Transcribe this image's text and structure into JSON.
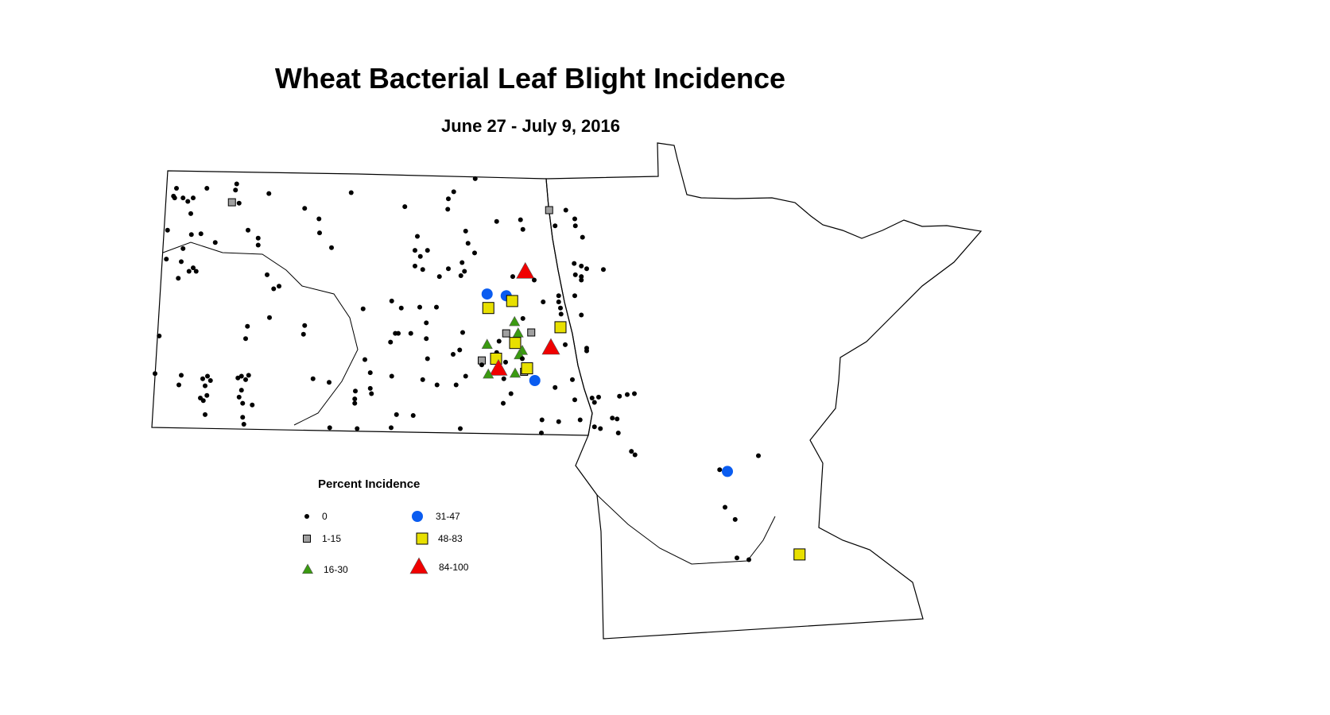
{
  "title": "Wheat Bacterial Leaf Blight Incidence",
  "subtitle": "June 27 - July 9, 2016",
  "legend": {
    "title": "Percent Incidence",
    "classes": [
      {
        "label": "0",
        "symbol": "dot",
        "color": "#000000"
      },
      {
        "label": "1-15",
        "symbol": "small-square",
        "color": "#a0a0a0"
      },
      {
        "label": "16-30",
        "symbol": "small-triangle",
        "color": "#3a9a10"
      },
      {
        "label": "31-47",
        "symbol": "circle",
        "color": "#0a5cf0"
      },
      {
        "label": "48-83",
        "symbol": "square",
        "color": "#e8e000"
      },
      {
        "label": "84-100",
        "symbol": "large-triangle",
        "color": "#f00000"
      }
    ]
  },
  "map_data": {
    "regions": [
      "North Dakota",
      "Minnesota"
    ],
    "point_fields": [
      "lon",
      "lat",
      "class_index"
    ],
    "points": [
      [
        -103.64,
        48.8,
        0
      ],
      [
        -103.13,
        48.8,
        0
      ],
      [
        -103.69,
        48.71,
        0
      ],
      [
        -103.67,
        48.69,
        0
      ],
      [
        -103.53,
        48.69,
        0
      ],
      [
        -103.45,
        48.65,
        0
      ],
      [
        -103.36,
        48.69,
        0
      ],
      [
        -103.4,
        48.51,
        0
      ],
      [
        -103.79,
        48.32,
        0
      ],
      [
        -103.39,
        48.27,
        0
      ],
      [
        -103.23,
        48.28,
        0
      ],
      [
        -102.99,
        48.18,
        0
      ],
      [
        -103.53,
        48.11,
        0
      ],
      [
        -103.81,
        47.99,
        0
      ],
      [
        -103.56,
        47.96,
        0
      ],
      [
        -103.36,
        47.89,
        0
      ],
      [
        -103.31,
        47.85,
        0
      ],
      [
        -103.43,
        47.85,
        0
      ],
      [
        -103.61,
        47.77,
        0
      ],
      [
        -102.63,
        48.85,
        0
      ],
      [
        -102.65,
        48.78,
        0
      ],
      [
        -102.59,
        48.63,
        0
      ],
      [
        -102.71,
        48.64,
        1
      ],
      [
        -102.09,
        48.74,
        0
      ],
      [
        -102.44,
        48.32,
        0
      ],
      [
        -102.27,
        48.23,
        0
      ],
      [
        -102.27,
        48.15,
        0
      ],
      [
        -101.49,
        48.57,
        0
      ],
      [
        -101.25,
        48.45,
        0
      ],
      [
        -101.24,
        48.29,
        0
      ],
      [
        -101.04,
        48.12,
        0
      ],
      [
        -102.12,
        47.81,
        0
      ],
      [
        -101.92,
        47.68,
        0
      ],
      [
        -102.01,
        47.65,
        0
      ],
      [
        -102.08,
        47.32,
        0
      ],
      [
        -101.49,
        47.23,
        0
      ],
      [
        -101.51,
        47.13,
        0
      ],
      [
        -102.45,
        47.22,
        0
      ],
      [
        -102.48,
        47.08,
        0
      ],
      [
        -103.93,
        47.11,
        0
      ],
      [
        -104.0,
        46.68,
        0
      ],
      [
        -103.56,
        46.66,
        0
      ],
      [
        -103.6,
        46.55,
        0
      ],
      [
        -103.2,
        46.62,
        0
      ],
      [
        -103.12,
        46.65,
        0
      ],
      [
        -103.07,
        46.6,
        0
      ],
      [
        -103.16,
        46.54,
        0
      ],
      [
        -103.13,
        46.43,
        0
      ],
      [
        -103.24,
        46.4,
        0
      ],
      [
        -103.19,
        46.37,
        0
      ],
      [
        -102.61,
        46.63,
        0
      ],
      [
        -102.55,
        46.65,
        0
      ],
      [
        -102.43,
        46.66,
        0
      ],
      [
        -102.48,
        46.61,
        0
      ],
      [
        -102.55,
        46.49,
        0
      ],
      [
        -102.59,
        46.41,
        0
      ],
      [
        -102.53,
        46.34,
        0
      ],
      [
        -102.37,
        46.32,
        0
      ],
      [
        -101.35,
        46.62,
        0
      ],
      [
        -101.08,
        46.58,
        0
      ],
      [
        -100.71,
        48.75,
        0
      ],
      [
        -98.63,
        48.91,
        0
      ],
      [
        -98.99,
        48.76,
        0
      ],
      [
        -99.08,
        48.68,
        0
      ],
      [
        -99.09,
        48.56,
        0
      ],
      [
        -99.81,
        48.59,
        0
      ],
      [
        -97.39,
        48.55,
        1
      ],
      [
        -97.11,
        48.55,
        0
      ],
      [
        -98.27,
        48.42,
        0
      ],
      [
        -97.87,
        48.44,
        0
      ],
      [
        -97.83,
        48.33,
        0
      ],
      [
        -97.29,
        48.37,
        0
      ],
      [
        -96.96,
        48.45,
        0
      ],
      [
        -96.95,
        48.37,
        0
      ],
      [
        -96.83,
        48.24,
        0
      ],
      [
        -98.79,
        48.31,
        0
      ],
      [
        -98.75,
        48.17,
        0
      ],
      [
        -98.64,
        48.06,
        0
      ],
      [
        -99.6,
        48.25,
        0
      ],
      [
        -99.64,
        48.09,
        0
      ],
      [
        -99.43,
        48.09,
        0
      ],
      [
        -99.55,
        48.02,
        0
      ],
      [
        -99.64,
        47.91,
        0
      ],
      [
        -99.51,
        47.87,
        0
      ],
      [
        -99.08,
        47.88,
        0
      ],
      [
        -98.85,
        47.95,
        0
      ],
      [
        -98.81,
        47.85,
        0
      ],
      [
        -98.87,
        47.8,
        0
      ],
      [
        -99.23,
        47.79,
        0
      ],
      [
        -97.79,
        47.86,
        5
      ],
      [
        -98.0,
        47.79,
        0
      ],
      [
        -97.64,
        47.75,
        0
      ],
      [
        -98.43,
        47.59,
        3
      ],
      [
        -98.11,
        47.57,
        3
      ],
      [
        -98.01,
        47.51,
        4
      ],
      [
        -98.41,
        47.43,
        4
      ],
      [
        -97.49,
        47.5,
        0
      ],
      [
        -97.23,
        47.57,
        0
      ],
      [
        -97.23,
        47.5,
        0
      ],
      [
        -97.2,
        47.43,
        0
      ],
      [
        -97.19,
        47.36,
        0
      ],
      [
        -97.83,
        47.31,
        0
      ],
      [
        -97.97,
        47.28,
        2
      ],
      [
        -97.2,
        47.21,
        4
      ],
      [
        -96.97,
        47.94,
        0
      ],
      [
        -96.85,
        47.91,
        0
      ],
      [
        -96.76,
        47.88,
        0
      ],
      [
        -96.95,
        47.81,
        0
      ],
      [
        -96.85,
        47.79,
        0
      ],
      [
        -96.85,
        47.75,
        0
      ],
      [
        -96.96,
        47.57,
        0
      ],
      [
        -96.85,
        47.35,
        0
      ],
      [
        -96.48,
        47.87,
        0
      ],
      [
        -97.91,
        47.15,
        2
      ],
      [
        -98.11,
        47.14,
        1
      ],
      [
        -97.69,
        47.15,
        1
      ],
      [
        -98.23,
        47.05,
        0
      ],
      [
        -97.96,
        47.03,
        4
      ],
      [
        -98.43,
        47.02,
        2
      ],
      [
        -97.84,
        46.95,
        2
      ],
      [
        -97.89,
        46.9,
        2
      ],
      [
        -97.36,
        46.99,
        5
      ],
      [
        -97.12,
        47.01,
        0
      ],
      [
        -96.76,
        46.97,
        0
      ],
      [
        -96.76,
        46.94,
        0
      ],
      [
        -98.27,
        46.92,
        0
      ],
      [
        -98.28,
        46.85,
        4
      ],
      [
        -98.12,
        46.81,
        0
      ],
      [
        -98.52,
        46.83,
        1
      ],
      [
        -98.52,
        46.78,
        0
      ],
      [
        -98.24,
        46.75,
        5
      ],
      [
        -98.41,
        46.68,
        2
      ],
      [
        -97.96,
        46.69,
        2
      ],
      [
        -97.81,
        46.7,
        1
      ],
      [
        -97.76,
        46.74,
        4
      ],
      [
        -97.63,
        46.6,
        3
      ],
      [
        -97.84,
        46.85,
        0
      ],
      [
        -98.15,
        46.62,
        0
      ],
      [
        -98.84,
        47.15,
        0
      ],
      [
        -99.45,
        47.26,
        0
      ],
      [
        -99.45,
        47.08,
        0
      ],
      [
        -98.89,
        46.95,
        0
      ],
      [
        -99.0,
        46.9,
        0
      ],
      [
        -99.43,
        46.85,
        0
      ],
      [
        -99.97,
        47.14,
        0
      ],
      [
        -99.92,
        47.14,
        0
      ],
      [
        -99.71,
        47.14,
        0
      ],
      [
        -100.05,
        47.04,
        0
      ],
      [
        -100.03,
        47.51,
        0
      ],
      [
        -99.87,
        47.43,
        0
      ],
      [
        -99.56,
        47.44,
        0
      ],
      [
        -99.28,
        47.44,
        0
      ],
      [
        -100.51,
        47.42,
        0
      ],
      [
        -100.48,
        46.84,
        0
      ],
      [
        -100.39,
        46.69,
        0
      ],
      [
        -100.03,
        46.65,
        0
      ],
      [
        -99.51,
        46.61,
        0
      ],
      [
        -99.27,
        46.55,
        0
      ],
      [
        -98.95,
        46.55,
        0
      ],
      [
        -98.79,
        46.65,
        0
      ],
      [
        -100.64,
        46.48,
        0
      ],
      [
        -100.39,
        46.51,
        0
      ],
      [
        -100.37,
        46.45,
        0
      ],
      [
        -100.65,
        46.39,
        0
      ],
      [
        -100.65,
        46.34,
        0
      ],
      [
        -98.03,
        46.45,
        0
      ],
      [
        -98.16,
        46.34,
        0
      ],
      [
        -97.29,
        46.52,
        0
      ],
      [
        -97.0,
        46.61,
        0
      ],
      [
        -96.96,
        46.38,
        0
      ],
      [
        -96.67,
        46.4,
        0
      ],
      [
        -96.56,
        46.41,
        0
      ],
      [
        -96.63,
        46.35,
        0
      ],
      [
        -103.16,
        46.21,
        0
      ],
      [
        -102.51,
        46.1,
        0
      ],
      [
        -102.53,
        46.18,
        0
      ],
      [
        -101.07,
        46.06,
        0
      ],
      [
        -100.61,
        46.05,
        0
      ],
      [
        -100.04,
        46.06,
        0
      ],
      [
        -99.67,
        46.2,
        0
      ],
      [
        -99.95,
        46.21,
        0
      ],
      [
        -98.88,
        46.05,
        0
      ],
      [
        -97.51,
        46.15,
        0
      ],
      [
        -97.52,
        46.0,
        0
      ],
      [
        -97.23,
        46.13,
        0
      ],
      [
        -96.87,
        46.15,
        0
      ],
      [
        -96.63,
        46.07,
        0
      ],
      [
        -96.53,
        46.05,
        0
      ],
      [
        -96.33,
        46.17,
        0
      ],
      [
        -96.23,
        46.0,
        0
      ],
      [
        -94.4,
        45.56,
        3
      ],
      [
        -93.19,
        44.61,
        4
      ],
      [
        -93.88,
        45.74,
        0
      ],
      [
        -94.53,
        45.58,
        0
      ],
      [
        -94.44,
        45.15,
        0
      ],
      [
        -94.27,
        45.01,
        0
      ],
      [
        -94.24,
        44.57,
        0
      ],
      [
        -94.04,
        44.55,
        0
      ],
      [
        -96.01,
        45.79,
        0
      ],
      [
        -95.95,
        45.75,
        0
      ],
      [
        -96.21,
        46.42,
        0
      ],
      [
        -96.08,
        46.44,
        0
      ],
      [
        -95.96,
        46.45,
        0
      ],
      [
        -96.25,
        46.16,
        0
      ]
    ]
  }
}
